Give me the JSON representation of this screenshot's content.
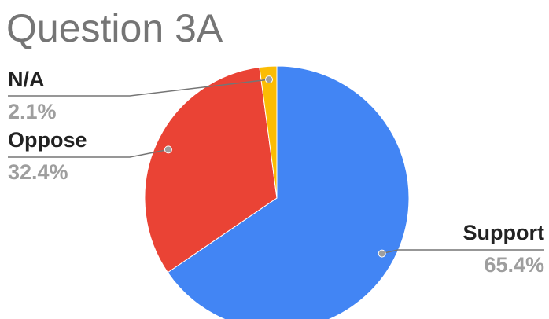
{
  "chart_data": {
    "type": "pie",
    "title": "Question 3A",
    "categories": [
      "Support",
      "Oppose",
      "N/A"
    ],
    "values": [
      65.4,
      32.4,
      2.1
    ],
    "value_labels": [
      "65.4%",
      "32.4%",
      "2.1%"
    ],
    "colors": [
      "#4285f4",
      "#ea4335",
      "#fbbc04"
    ]
  }
}
